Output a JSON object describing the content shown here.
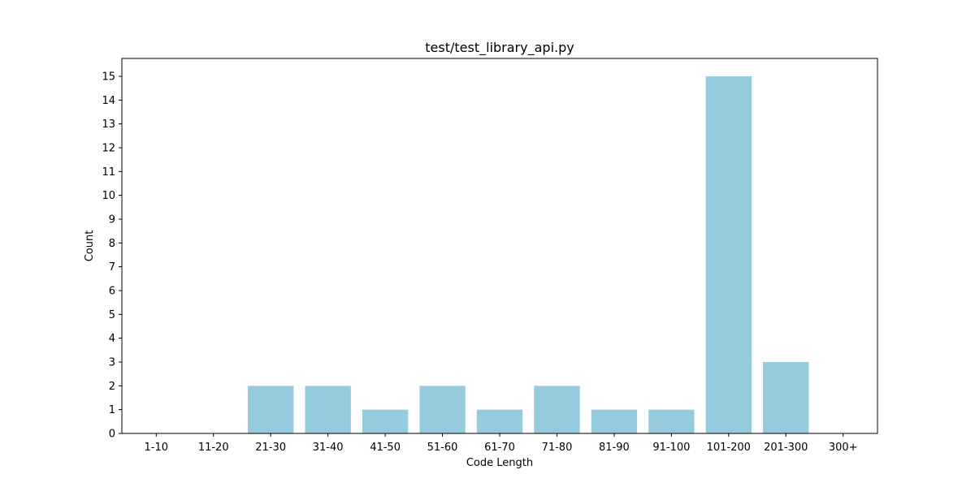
{
  "chart_data": {
    "type": "bar",
    "title": "test/test_library_api.py",
    "xlabel": "Code Length",
    "ylabel": "Count",
    "categories": [
      "1-10",
      "11-20",
      "21-30",
      "31-40",
      "41-50",
      "51-60",
      "61-70",
      "71-80",
      "81-90",
      "91-100",
      "101-200",
      "201-300",
      "300+"
    ],
    "values": [
      0,
      0,
      2,
      2,
      1,
      2,
      1,
      2,
      1,
      1,
      15,
      3,
      0
    ],
    "ylim": [
      0,
      15.75
    ],
    "yticks": [
      "0",
      "1",
      "2",
      "3",
      "4",
      "5",
      "6",
      "7",
      "8",
      "9",
      "10",
      "11",
      "12",
      "13",
      "14",
      "15"
    ],
    "bar_color": "#96cadd",
    "grid": false,
    "legend": "none"
  }
}
